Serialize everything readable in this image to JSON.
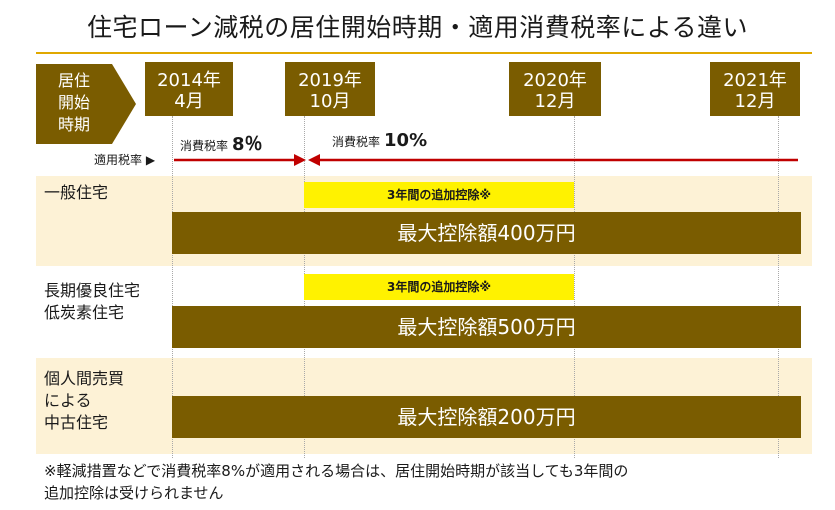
{
  "title": "住宅ローン減税の居住開始時期・適用消費税率による違い",
  "header": {
    "period_label": [
      "居住",
      "開始",
      "時期"
    ],
    "dates": [
      {
        "year": "2014年",
        "month": "4月"
      },
      {
        "year": "2019年",
        "month": "10月"
      },
      {
        "year": "2020年",
        "month": "12月"
      },
      {
        "year": "2021年",
        "month": "12月"
      }
    ]
  },
  "tax_rate": {
    "label": "適用税率 ▶",
    "rate8_prefix": "消費税率",
    "rate8_value": "8％",
    "rate10_prefix": "消費税率",
    "rate10_value": "10%"
  },
  "categories": [
    {
      "lines": [
        "一般住宅"
      ],
      "extra": "3年間の追加控除※",
      "max": "最大控除額400万円"
    },
    {
      "lines": [
        "長期優良住宅",
        "低炭素住宅"
      ],
      "extra": "3年間の追加控除※",
      "max": "最大控除額500万円"
    },
    {
      "lines": [
        "個人間売買",
        "による",
        "中古住宅"
      ],
      "extra": "",
      "max": "最大控除額200万円"
    }
  ],
  "footnote": {
    "line1": "※軽減措置などで消費税率8%が適用される場合は、居住開始時期が該当しても3年間の",
    "line2": "追加控除は受けられません"
  },
  "colors": {
    "brown": "#7a5c00",
    "yellow": "#fff200",
    "band": "#fdf2d6",
    "arrow_red": "#c00000",
    "rule_gold": "#e0a800"
  }
}
